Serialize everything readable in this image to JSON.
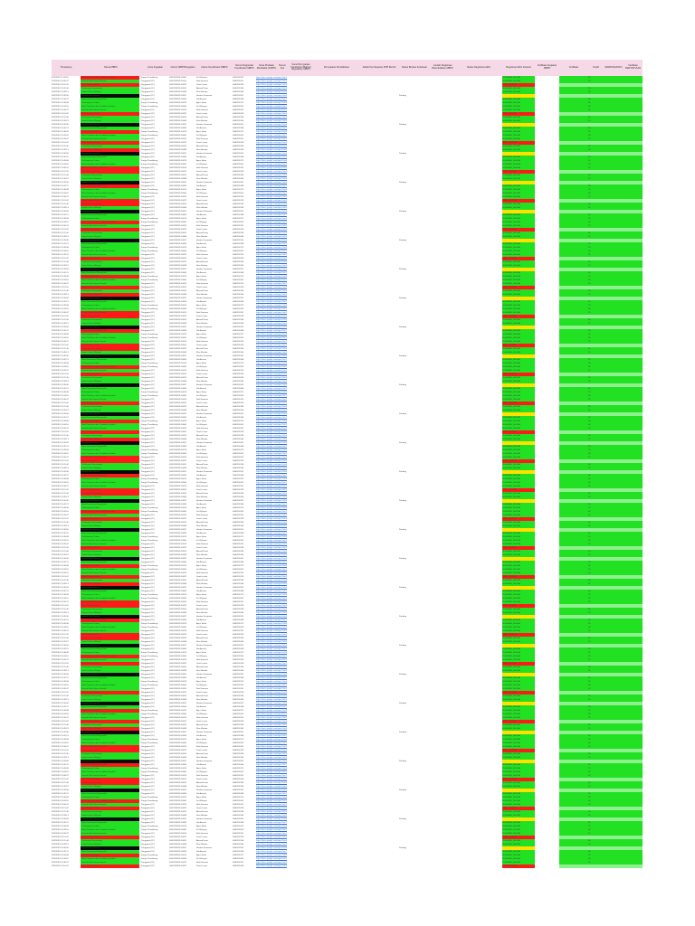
{
  "sheet": {
    "headers": [
      "Timestamp",
      "Nama MBPK",
      "Jenis Kegiatan",
      "Nomor MBPK/Kegiatan",
      "Nama Koordinator MBPK",
      "Nomor Registrasi Koordinator MBPK",
      "Surat Pindaian Mendaftar (KMPK)",
      "Nomor Fax",
      "Surat Pernyataan Kepatuhan (Bahan) Regulatory MBPK",
      "Pernyataan Pendaftaran",
      "Daftar Pembayaran PNP Bersih",
      "Status Berkas Kelulusan",
      "Jumlah Registrasi Dikembalikan MBPK",
      "Status Registrasi Akhir",
      "Registrasi Akhir Instansi",
      "Verifikasi Kegiatan MBPK",
      "Verifikasi",
      "Kredit",
      "WARNING/INFO",
      "Verifikasi PERTANYAAN"
    ],
    "rows": [
      {
        "ts": "9/19/2019 11:03:16",
        "name": "Balai Pelatihan dan Pendidikan Ibadah",
        "jenis": "Fungsi Pendukung",
        "no": "0020190919-10000",
        "koord": "Sri Wahyuni",
        "reg": "0090230102",
        "link": "https://docs.google.com/open?id=1",
        "status": "",
        "verif": "KEGIATAN_SESUAI",
        "kredit": "50"
      },
      {
        "ts": "9/19/2019 11:09:47",
        "name": "Rumah Sakit Umum Daerah",
        "jenis": "Pengganti (LP)",
        "no": "0020190919-10015",
        "koord": "Budi Santoso",
        "reg": "0090230115",
        "link": "https://docs.google.com/open?id=2",
        "status": "",
        "verif": "KEGIATAN_SESUAI",
        "kredit": "25"
      },
      {
        "ts": "9/19/2019 11:15:02",
        "name": "Klinik Pratama Sehat",
        "jenis": "Pengganti (LP)",
        "no": "0020190919-10022",
        "koord": "Dewi Lestari",
        "reg": "0090230129",
        "link": "https://docs.google.com/open?id=3",
        "status": "",
        "verif": "TIDAK_SESUAI",
        "kredit": ""
      },
      {
        "ts": "9/19/2019 11:21:40",
        "name": "Puskesmas Kecamatan",
        "jenis": "Pengganti (LP)",
        "no": "0020190919-10031",
        "koord": "Ahmad Fauzi",
        "reg": "0090230136",
        "link": "https://docs.google.com/open?id=4",
        "status": "",
        "verif": "KEGIATAN_SESUAI",
        "kredit": "50"
      },
      {
        "ts": "9/19/2019 11:28:13",
        "name": "Ikatan Profesi Wilayah",
        "jenis": "Pengganti (LP)",
        "no": "0020190919-10048",
        "koord": "Rina Marlina",
        "reg": "0090230144",
        "link": "https://docs.google.com/open?id=5",
        "status": "",
        "verif": "KEGIATAN_SESUAI",
        "kredit": "25"
      },
      {
        "ts": "9/19/2019 11:35:56",
        "name": "Rumah Sakit Swasta",
        "jenis": "Pengganti (LP)",
        "no": "0020190919-10057",
        "koord": "Hendra Gunawan",
        "reg": "0090230151",
        "link": "https://docs.google.com/open?id=6",
        "status": "Pending",
        "verif": "",
        "kredit": ""
      },
      {
        "ts": "9/19/2019 11:42:21",
        "name": "Balai Kesehatan Masyarakat",
        "jenis": "Pengganti (LP)",
        "no": "0020190919-10063",
        "koord": "Siti Aminah",
        "reg": "0090230168",
        "link": "https://docs.google.com/open?id=7",
        "status": "",
        "verif": "KEGIATAN_SESUAI",
        "kredit": "50"
      },
      {
        "ts": "9/19/2019 11:49:08",
        "name": "Perhimpunan Dokter",
        "jenis": "Fungsi Pendukung",
        "no": "0020190919-10074",
        "koord": "Agus Salim",
        "reg": "0090230172",
        "link": "https://docs.google.com/open?id=8",
        "status": "",
        "verif": "KEGIATAN_SESUAI",
        "kredit": "25"
      }
    ]
  }
}
